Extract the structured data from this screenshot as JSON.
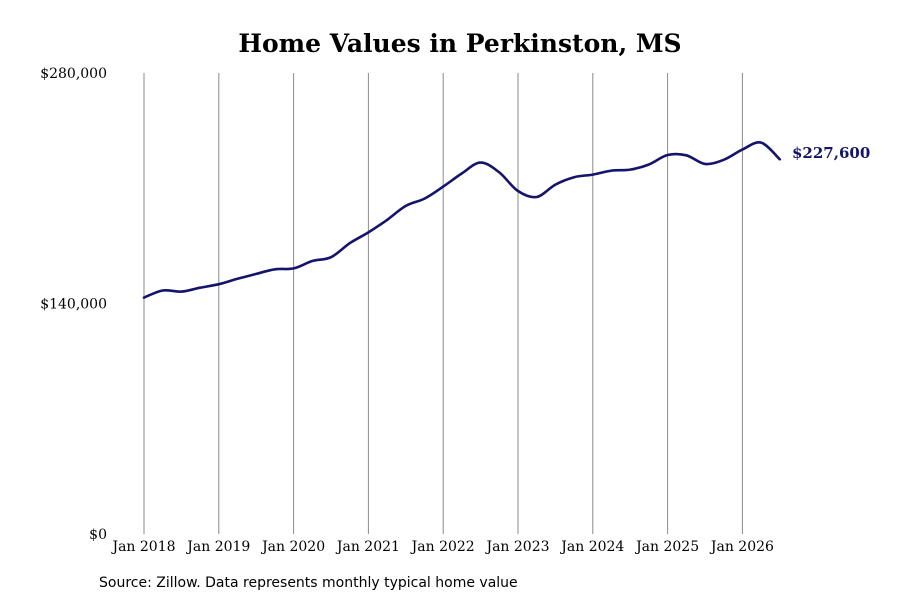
{
  "chart_data": {
    "type": "line",
    "title": "Home Values in Perkinston, MS",
    "source": "Source: Zillow. Data represents monthly typical home value",
    "xlabel": "",
    "ylabel": "",
    "ylim": [
      0,
      280000
    ],
    "xlim": [
      "2018-01",
      "2026-07"
    ],
    "y_ticks": [
      {
        "value": 0,
        "label": "$0"
      },
      {
        "value": 140000,
        "label": "$140,000"
      },
      {
        "value": 280000,
        "label": "$280,000"
      }
    ],
    "x_ticks": [
      {
        "value": "2018-01",
        "label": "Jan 2018"
      },
      {
        "value": "2019-01",
        "label": "Jan 2019"
      },
      {
        "value": "2020-01",
        "label": "Jan 2020"
      },
      {
        "value": "2021-01",
        "label": "Jan 2021"
      },
      {
        "value": "2022-01",
        "label": "Jan 2022"
      },
      {
        "value": "2023-01",
        "label": "Jan 2023"
      },
      {
        "value": "2024-01",
        "label": "Jan 2024"
      },
      {
        "value": "2025-01",
        "label": "Jan 2025"
      },
      {
        "value": "2026-01",
        "label": "Jan 2026"
      }
    ],
    "grid": {
      "vertical": true,
      "horizontal": false
    },
    "legend": "none",
    "end_label": "$227,600",
    "colors": {
      "line": "#14146b",
      "end_label": "#14146b",
      "grid": "#8a8a8a"
    },
    "series": [
      {
        "x": [
          "2018-01",
          "2018-04",
          "2018-07",
          "2018-10",
          "2019-01",
          "2019-04",
          "2019-07",
          "2019-10",
          "2020-01",
          "2020-04",
          "2020-07",
          "2020-10",
          "2021-01",
          "2021-04",
          "2021-07",
          "2021-10",
          "2022-01",
          "2022-04",
          "2022-07",
          "2022-10",
          "2023-01",
          "2023-04",
          "2023-07",
          "2023-10",
          "2024-01",
          "2024-04",
          "2024-07",
          "2024-10",
          "2025-01",
          "2025-04",
          "2025-07",
          "2025-10",
          "2026-01",
          "2026-04",
          "2026-07"
        ],
        "y": [
          143600,
          147900,
          147200,
          149600,
          151700,
          155000,
          158000,
          160800,
          161300,
          165800,
          168100,
          176600,
          183200,
          190800,
          199300,
          203700,
          211000,
          219000,
          225600,
          219600,
          208300,
          204700,
          212200,
          216700,
          218300,
          220700,
          221300,
          224400,
          230200,
          230000,
          224800,
          227300,
          233500,
          237700,
          227600
        ]
      }
    ]
  }
}
